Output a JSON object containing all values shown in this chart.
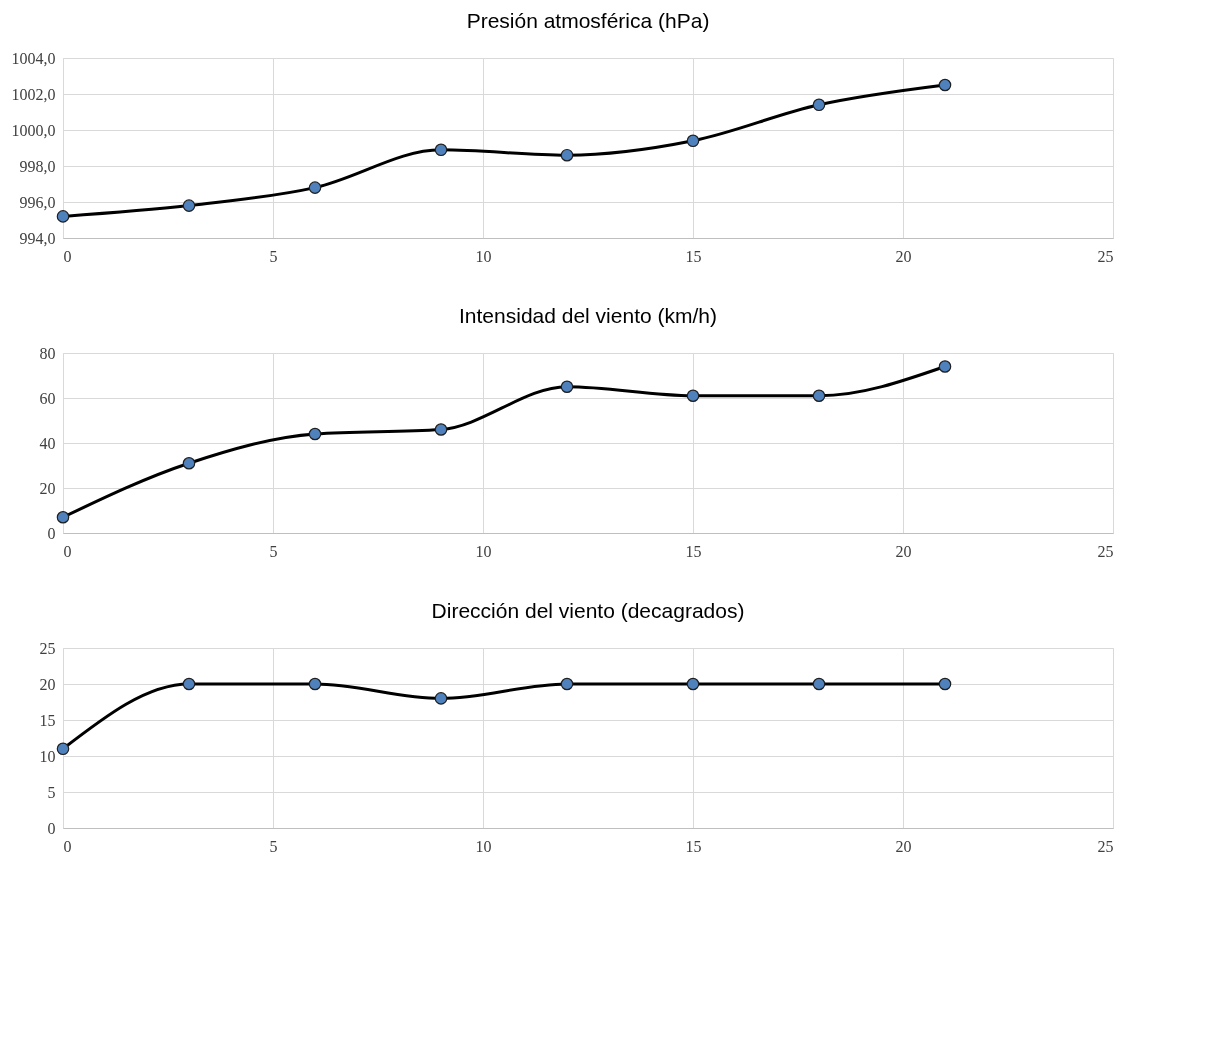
{
  "chart_data": [
    {
      "type": "line",
      "title": "Presión atmosférica (hPa)",
      "x": [
        0,
        3,
        6,
        9,
        12,
        15,
        18,
        21
      ],
      "xlim": [
        0,
        25
      ],
      "xticks": [
        0,
        5,
        10,
        15,
        20,
        25
      ],
      "ylim": [
        994,
        1004
      ],
      "yticks": [
        {
          "value": 994,
          "label": "994,0"
        },
        {
          "value": 996,
          "label": "996,0"
        },
        {
          "value": 998,
          "label": "998,0"
        },
        {
          "value": 1000,
          "label": "1000,0"
        },
        {
          "value": 1002,
          "label": "1002,0"
        },
        {
          "value": 1004,
          "label": "1004,0"
        }
      ],
      "grid": true,
      "line_style": "solid",
      "series": [
        {
          "type": "line",
          "marker": "none",
          "color": "#000000",
          "values": [
            995.2,
            995.8,
            996.8,
            998.9,
            998.6,
            999.4,
            1001.4,
            1002.5
          ]
        },
        {
          "type": "scatter",
          "marker": "circle",
          "color": "#4f81bd",
          "values": [
            995.2,
            995.8,
            996.8,
            998.9,
            998.6,
            999.4,
            1001.4,
            1002.5
          ]
        }
      ]
    },
    {
      "type": "line",
      "title": "Intensidad del viento (km/h)",
      "x": [
        0,
        3,
        6,
        9,
        12,
        15,
        18,
        21
      ],
      "xlim": [
        0,
        25
      ],
      "xticks": [
        0,
        5,
        10,
        15,
        20,
        25
      ],
      "ylim": [
        0,
        80
      ],
      "yticks": [
        0,
        20,
        40,
        60,
        80
      ],
      "grid": true,
      "line_style": "solid",
      "series": [
        {
          "type": "line",
          "marker": "none",
          "color": "#000000",
          "values": [
            7,
            31,
            44,
            46,
            65,
            61,
            61,
            74
          ]
        },
        {
          "type": "scatter",
          "marker": "circle",
          "color": "#4f81bd",
          "values": [
            7,
            31,
            44,
            46,
            65,
            61,
            61,
            74
          ]
        }
      ]
    },
    {
      "type": "line",
      "title": "Dirección del viento (decagrados)",
      "x": [
        0,
        3,
        6,
        9,
        12,
        15,
        18,
        21
      ],
      "xlim": [
        0,
        25
      ],
      "xticks": [
        0,
        5,
        10,
        15,
        20,
        25
      ],
      "ylim": [
        0,
        25
      ],
      "yticks": [
        0,
        5,
        10,
        15,
        20,
        25
      ],
      "grid": true,
      "line_style": "solid",
      "series": [
        {
          "type": "line",
          "marker": "none",
          "color": "#000000",
          "values": [
            11,
            20,
            20,
            18,
            20,
            20,
            20,
            20
          ]
        },
        {
          "type": "scatter",
          "marker": "circle",
          "color": "#4f81bd",
          "values": [
            11,
            20,
            20,
            18,
            20,
            20,
            20,
            20
          ]
        }
      ]
    }
  ]
}
